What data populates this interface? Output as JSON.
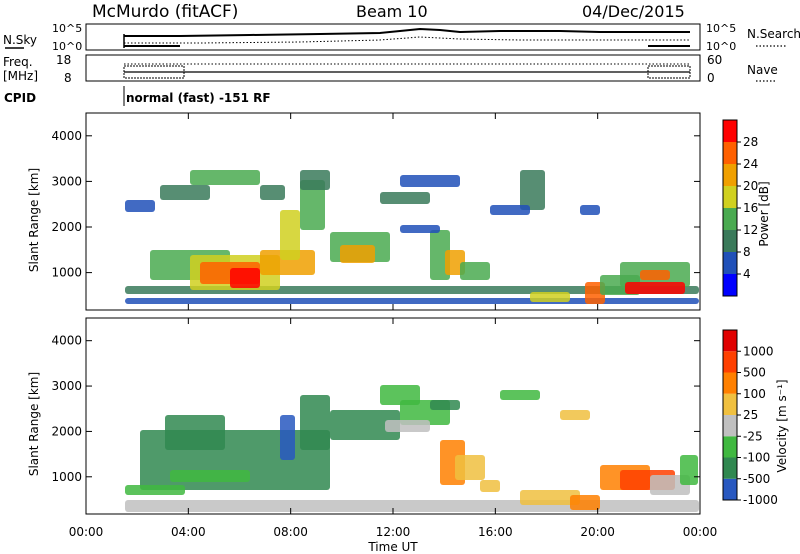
{
  "header": {
    "station": "McMurdo (fitACF)",
    "beam": "Beam 10",
    "date": "04/Dec/2015"
  },
  "top_panel": {
    "left_label": "N.Sky",
    "right_label": "N.Search",
    "tick_top": "10^5",
    "tick_bottom": "10^0",
    "right_tick_top": "10^5",
    "right_tick_bottom": "10^0"
  },
  "freq_panel": {
    "left_label_1": "Freq.",
    "left_label_2": "[MHz]",
    "left_ticks": [
      "18",
      "8"
    ],
    "right_label": "Nave",
    "right_ticks": [
      "60",
      "0"
    ]
  },
  "cpid": {
    "label": "CPID",
    "text": "normal (fast) -151 RF"
  },
  "colors": {
    "power": [
      "#0000ff",
      "#2050b8",
      "#3a7a5a",
      "#4aaa50",
      "#d0d020",
      "#f0a000",
      "#ff6000",
      "#ff0000"
    ],
    "velocity": [
      "#e00000",
      "#ff4000",
      "#ff8000",
      "#f0c040",
      "#c0c0c0",
      "#40b840",
      "#308850",
      "#2858c0"
    ]
  },
  "chart_data": [
    {
      "type": "heatmap",
      "name": "power",
      "ylabel": "Slant Range [km]",
      "yticks": [
        "1000",
        "2000",
        "3000",
        "4000"
      ],
      "colorbar_label": "Power [dB]",
      "colorbar_ticks": [
        "4",
        "8",
        "12",
        "16",
        "20",
        "24",
        "28"
      ]
    },
    {
      "type": "heatmap",
      "name": "velocity",
      "ylabel": "Slant Range [km]",
      "yticks": [
        "1000",
        "2000",
        "3000",
        "4000"
      ],
      "colorbar_label": "Velocity [m s⁻¹]",
      "colorbar_ticks": [
        "1000",
        "500",
        "100",
        "25",
        "-25",
        "-100",
        "-500",
        "-1000"
      ]
    }
  ],
  "xaxis": {
    "label": "Time UT",
    "ticks": [
      "00:00",
      "04:00",
      "08:00",
      "12:00",
      "16:00",
      "20:00",
      "00:00"
    ]
  }
}
